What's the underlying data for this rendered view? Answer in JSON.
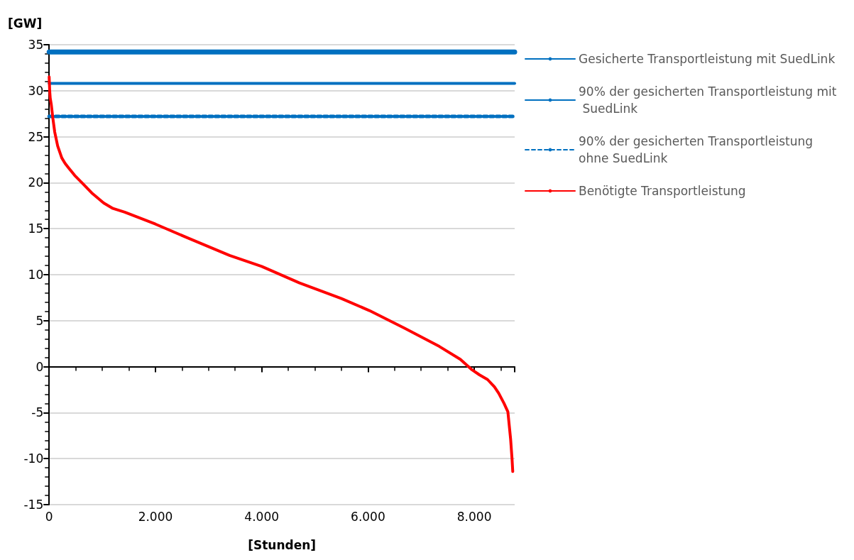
{
  "chart_data": {
    "type": "line",
    "ylabel": "[GW]",
    "xlabel": "[Stunden]",
    "xlim": [
      0,
      8760
    ],
    "ylim": [
      -15,
      35
    ],
    "xticks": [
      0,
      {
        "value": 2000,
        "label": "2.000"
      },
      {
        "value": 4000,
        "label": "4.000"
      },
      {
        "value": 6000,
        "label": "6.000"
      },
      {
        "value": 8000,
        "label": "8.000"
      }
    ],
    "yticks": [
      -15,
      -10,
      -5,
      0,
      5,
      10,
      15,
      20,
      25,
      30,
      35
    ],
    "grid": "y",
    "legend": "right",
    "marker": "none",
    "series": [
      {
        "name": "Gesicherte Transportleistung mit SuedLink",
        "color": "#0070c0",
        "line_style": "solid",
        "x": [
          0,
          8760
        ],
        "values": [
          34.2,
          34.2
        ]
      },
      {
        "name": "90% der gesicherten Transportleistung mit SuedLink",
        "color": "#0070c0",
        "line_style": "solid",
        "x": [
          0,
          8760
        ],
        "values": [
          30.8,
          30.8
        ]
      },
      {
        "name": "90% der gesicherten Transportleistung ohne SuedLink",
        "color": "#0070c0",
        "line_style": "dashed",
        "x": [
          0,
          8760
        ],
        "values": [
          27.2,
          27.2
        ]
      },
      {
        "name": "Benötigte Transportleistung",
        "color": "#ff0000",
        "line_style": "solid",
        "x": [
          0,
          10,
          20,
          40,
          70,
          105,
          160,
          237,
          300,
          368,
          480,
          632,
          800,
          1026,
          1200,
          1421,
          2000,
          2605,
          3395,
          4000,
          4711,
          5500,
          6026,
          6684,
          7342,
          7737,
          7960,
          8100,
          8250,
          8380,
          8460,
          8560,
          8632,
          8684,
          8710,
          8724
        ],
        "values": [
          31.5,
          30.0,
          29.2,
          28.5,
          27.0,
          25.5,
          24.0,
          22.7,
          22.1,
          21.6,
          20.8,
          19.9,
          18.9,
          17.8,
          17.2,
          16.8,
          15.5,
          14.0,
          12.1,
          10.9,
          9.1,
          7.4,
          6.1,
          4.2,
          2.2,
          0.8,
          -0.35,
          -0.9,
          -1.4,
          -2.2,
          -2.9,
          -4.0,
          -4.9,
          -7.9,
          -10.0,
          -11.4
        ]
      }
    ]
  }
}
